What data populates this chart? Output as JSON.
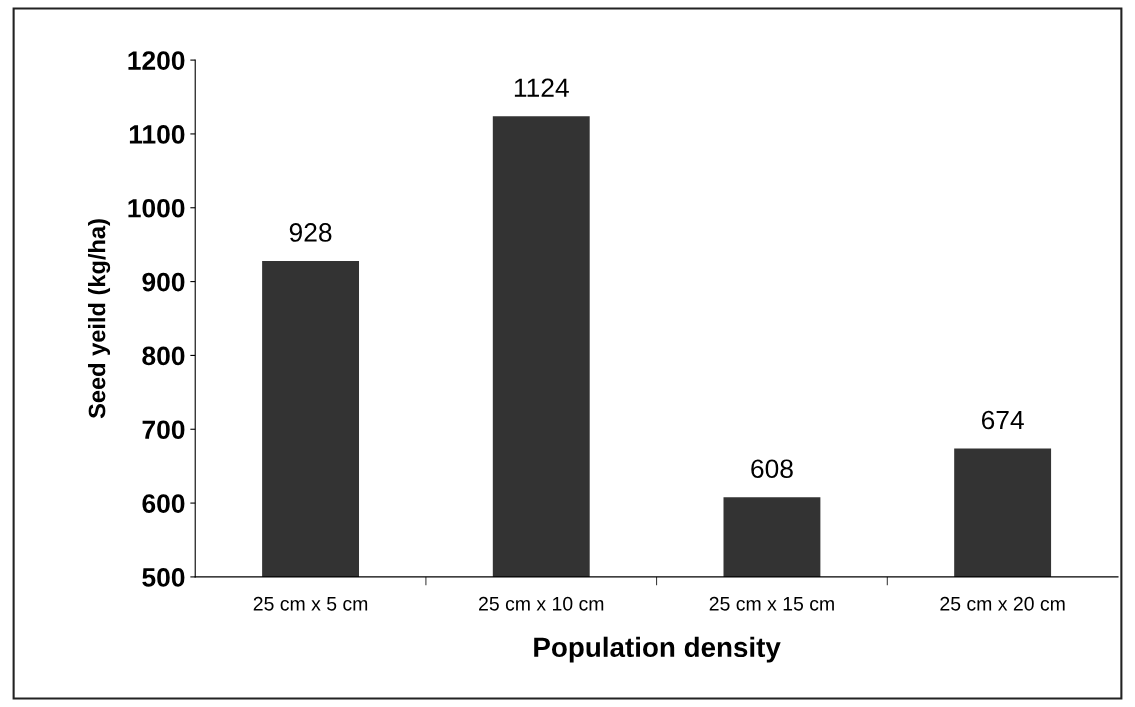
{
  "chart_data": {
    "type": "bar",
    "xlabel": "Population density",
    "ylabel": "Seed yeild (kg/ha)",
    "categories": [
      "25 cm x 5 cm",
      "25 cm x 10 cm",
      "25 cm x 15 cm",
      "25 cm x 20 cm"
    ],
    "values": [
      928,
      1124,
      608,
      674
    ],
    "color": "#333333",
    "ylim": [
      500,
      1200
    ],
    "yticks": [
      500,
      600,
      700,
      800,
      900,
      1000,
      1100,
      1200
    ],
    "data_labels": true,
    "grid": false,
    "legend": false
  }
}
